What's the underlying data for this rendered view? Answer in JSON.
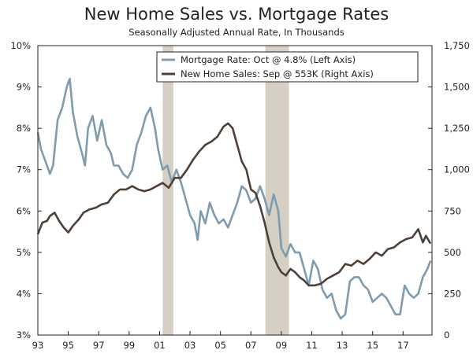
{
  "chart_data": {
    "type": "line",
    "title": "New Home Sales vs. Mortgage Rates",
    "subtitle": "Seasonally Adjusted Annual Rate, In Thousands",
    "x_range": [
      1993.0,
      2018.9
    ],
    "x_ticks": [
      {
        "year": 1993.0,
        "label": "93"
      },
      {
        "year": 1995.0,
        "label": "95"
      },
      {
        "year": 1997.0,
        "label": "97"
      },
      {
        "year": 1999.0,
        "label": "99"
      },
      {
        "year": 2001.0,
        "label": "01"
      },
      {
        "year": 2003.0,
        "label": "03"
      },
      {
        "year": 2005.0,
        "label": "05"
      },
      {
        "year": 2007.0,
        "label": "07"
      },
      {
        "year": 2009.0,
        "label": "09"
      },
      {
        "year": 2011.0,
        "label": "11"
      },
      {
        "year": 2013.0,
        "label": "13"
      },
      {
        "year": 2015.0,
        "label": "15"
      },
      {
        "year": 2017.0,
        "label": "17"
      }
    ],
    "left_axis": {
      "ylim": [
        3,
        10
      ],
      "ticks": [
        3,
        4,
        5,
        6,
        7,
        8,
        9,
        10
      ],
      "tick_labels": [
        "3%",
        "4%",
        "5%",
        "6%",
        "7%",
        "8%",
        "9%",
        "10%"
      ]
    },
    "right_axis": {
      "ylim": [
        0,
        1750
      ],
      "ticks": [
        0,
        250,
        500,
        750,
        1000,
        1250,
        1500,
        1750
      ],
      "tick_labels": [
        "0",
        "250",
        "500",
        "750",
        "1,000",
        "1,250",
        "1,500",
        "1,750"
      ]
    },
    "recessions": [
      [
        2001.2,
        2001.9
      ],
      [
        2007.95,
        2009.5
      ]
    ],
    "legend": [
      {
        "label": "Mortgage Rate: Oct @ 4.8% (Left Axis)",
        "color": "#7f9caf"
      },
      {
        "label": "New Home Sales: Sep @ 553K (Right Axis)",
        "color": "#4e4038"
      }
    ],
    "series": [
      {
        "name": "Mortgage Rate",
        "axis": "left",
        "color": "#7f9caf",
        "x": [
          1993.0,
          1993.2,
          1993.5,
          1993.8,
          1994.0,
          1994.3,
          1994.6,
          1994.9,
          1995.1,
          1995.3,
          1995.6,
          1995.9,
          1996.1,
          1996.3,
          1996.6,
          1996.9,
          1997.2,
          1997.5,
          1997.8,
          1998.0,
          1998.3,
          1998.6,
          1998.9,
          1999.2,
          1999.5,
          1999.8,
          2000.1,
          2000.4,
          2000.7,
          2000.9,
          2001.2,
          2001.5,
          2001.8,
          2002.1,
          2002.4,
          2002.7,
          2003.0,
          2003.3,
          2003.5,
          2003.7,
          2004.0,
          2004.3,
          2004.6,
          2004.9,
          2005.2,
          2005.5,
          2005.8,
          2006.1,
          2006.4,
          2006.7,
          2007.0,
          2007.3,
          2007.6,
          2007.9,
          2008.2,
          2008.5,
          2008.8,
          2009.0,
          2009.3,
          2009.6,
          2009.9,
          2010.2,
          2010.5,
          2010.8,
          2011.1,
          2011.4,
          2011.7,
          2012.0,
          2012.3,
          2012.6,
          2012.9,
          2013.2,
          2013.5,
          2013.8,
          2014.1,
          2014.4,
          2014.7,
          2015.0,
          2015.3,
          2015.6,
          2015.9,
          2016.2,
          2016.5,
          2016.8,
          2017.1,
          2017.4,
          2017.7,
          2018.0,
          2018.3,
          2018.6,
          2018.8
        ],
        "y": [
          7.9,
          7.5,
          7.2,
          6.9,
          7.1,
          8.2,
          8.5,
          9.0,
          9.2,
          8.4,
          7.8,
          7.4,
          7.1,
          8.0,
          8.3,
          7.7,
          8.2,
          7.6,
          7.4,
          7.1,
          7.1,
          6.9,
          6.8,
          7.0,
          7.6,
          7.9,
          8.3,
          8.5,
          8.0,
          7.5,
          7.0,
          7.1,
          6.7,
          7.0,
          6.7,
          6.3,
          5.9,
          5.7,
          5.3,
          6.0,
          5.7,
          6.2,
          5.9,
          5.7,
          5.8,
          5.6,
          5.9,
          6.2,
          6.6,
          6.5,
          6.2,
          6.3,
          6.6,
          6.3,
          5.9,
          6.4,
          6.0,
          5.1,
          4.9,
          5.2,
          5.0,
          5.0,
          4.6,
          4.2,
          4.8,
          4.6,
          4.1,
          3.9,
          4.0,
          3.6,
          3.4,
          3.5,
          4.3,
          4.4,
          4.4,
          4.2,
          4.1,
          3.8,
          3.9,
          4.0,
          3.9,
          3.7,
          3.5,
          3.5,
          4.2,
          4.0,
          3.9,
          4.0,
          4.4,
          4.6,
          4.8
        ]
      },
      {
        "name": "New Home Sales",
        "axis": "right",
        "color": "#4e4038",
        "x": [
          1993.0,
          1993.3,
          1993.6,
          1993.8,
          1994.1,
          1994.4,
          1994.7,
          1995.0,
          1995.3,
          1995.7,
          1996.0,
          1996.4,
          1996.8,
          1997.2,
          1997.6,
          1998.0,
          1998.4,
          1998.8,
          1999.2,
          1999.6,
          2000.0,
          2000.4,
          2000.8,
          2001.2,
          2001.6,
          2002.0,
          2002.4,
          2002.8,
          2003.2,
          2003.6,
          2004.0,
          2004.4,
          2004.8,
          2005.2,
          2005.5,
          2005.8,
          2006.1,
          2006.4,
          2006.7,
          2007.0,
          2007.3,
          2007.6,
          2007.9,
          2008.2,
          2008.5,
          2008.8,
          2009.0,
          2009.3,
          2009.6,
          2009.9,
          2010.2,
          2010.5,
          2010.8,
          2011.2,
          2011.6,
          2012.0,
          2012.4,
          2012.8,
          2013.2,
          2013.6,
          2014.0,
          2014.4,
          2014.8,
          2015.2,
          2015.6,
          2016.0,
          2016.4,
          2016.8,
          2017.2,
          2017.6,
          2018.0,
          2018.3,
          2018.5,
          2018.8
        ],
        "y": [
          610,
          680,
          690,
          720,
          740,
          690,
          650,
          620,
          660,
          700,
          740,
          760,
          770,
          790,
          800,
          850,
          880,
          880,
          900,
          880,
          870,
          880,
          900,
          920,
          890,
          950,
          950,
          1000,
          1060,
          1110,
          1150,
          1170,
          1200,
          1260,
          1280,
          1250,
          1150,
          1050,
          1000,
          880,
          860,
          780,
          680,
          560,
          470,
          410,
          380,
          360,
          400,
          380,
          350,
          330,
          300,
          300,
          310,
          340,
          360,
          380,
          430,
          420,
          450,
          430,
          460,
          500,
          480,
          520,
          530,
          560,
          580,
          590,
          640,
          560,
          600,
          553
        ]
      }
    ]
  }
}
